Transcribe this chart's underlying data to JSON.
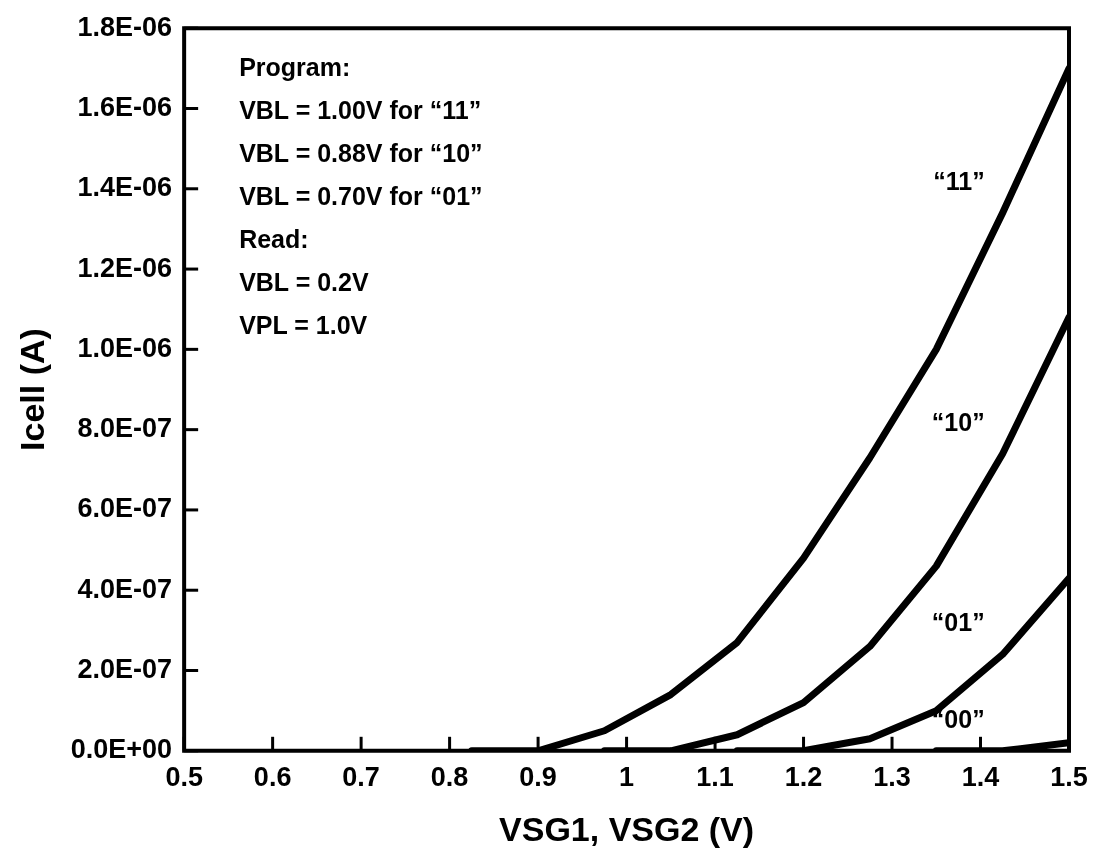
{
  "chart_data": {
    "type": "line",
    "xlabel": "VSG1, VSG2 (V)",
    "ylabel": "Icell (A)",
    "xlim": [
      0.5,
      1.5
    ],
    "xticks": [
      0.5,
      0.6,
      0.7,
      0.8,
      0.9,
      1,
      1.1,
      1.2,
      1.3,
      1.4,
      1.5
    ],
    "ylim": [
      0,
      1.8e-06
    ],
    "yticks": [
      {
        "value": 0,
        "label": "0.0E+00"
      },
      {
        "value": 2e-07,
        "label": "2.0E-07"
      },
      {
        "value": 4e-07,
        "label": "4.0E-07"
      },
      {
        "value": 6e-07,
        "label": "6.0E-07"
      },
      {
        "value": 8e-07,
        "label": "8.0E-07"
      },
      {
        "value": 1e-06,
        "label": "1.0E-06"
      },
      {
        "value": 1.2e-06,
        "label": "1.2E-06"
      },
      {
        "value": 1.4e-06,
        "label": "1.4E-06"
      },
      {
        "value": 1.6e-06,
        "label": "1.6E-06"
      },
      {
        "value": 1.8e-06,
        "label": "1.8E-06"
      }
    ],
    "grid": false,
    "legend": false,
    "marker": "none",
    "line_style": "solid",
    "series": [
      {
        "name": "“11”",
        "color": "#000000",
        "x": [
          0.825,
          0.9,
          0.975,
          1.05,
          1.125,
          1.2,
          1.275,
          1.35,
          1.425,
          1.5
        ],
        "values": [
          0,
          0,
          5e-08,
          1.4e-07,
          2.7e-07,
          4.8e-07,
          7.3e-07,
          1e-06,
          1.34e-06,
          1.7e-06
        ]
      },
      {
        "name": "“10”",
        "color": "#000000",
        "x": [
          0.975,
          1.05,
          1.125,
          1.2,
          1.275,
          1.35,
          1.425,
          1.5
        ],
        "values": [
          0,
          0,
          4e-08,
          1.2e-07,
          2.6e-07,
          4.6e-07,
          7.4e-07,
          1.08e-06
        ]
      },
      {
        "name": "“01”",
        "color": "#000000",
        "x": [
          1.125,
          1.2,
          1.275,
          1.35,
          1.425,
          1.5
        ],
        "values": [
          0,
          0,
          3e-08,
          1e-07,
          2.4e-07,
          4.3e-07
        ]
      },
      {
        "name": "“00”",
        "color": "#000000",
        "x": [
          1.35,
          1.425,
          1.5
        ],
        "values": [
          0,
          0,
          2e-08
        ]
      }
    ],
    "annotations": [
      "Program:",
      "VBL = 1.00V for “11”",
      "VBL = 0.88V for “10”",
      "VBL = 0.70V for “01”",
      "Read:",
      "VBL = 0.2V",
      "VPL = 1.0V"
    ]
  }
}
